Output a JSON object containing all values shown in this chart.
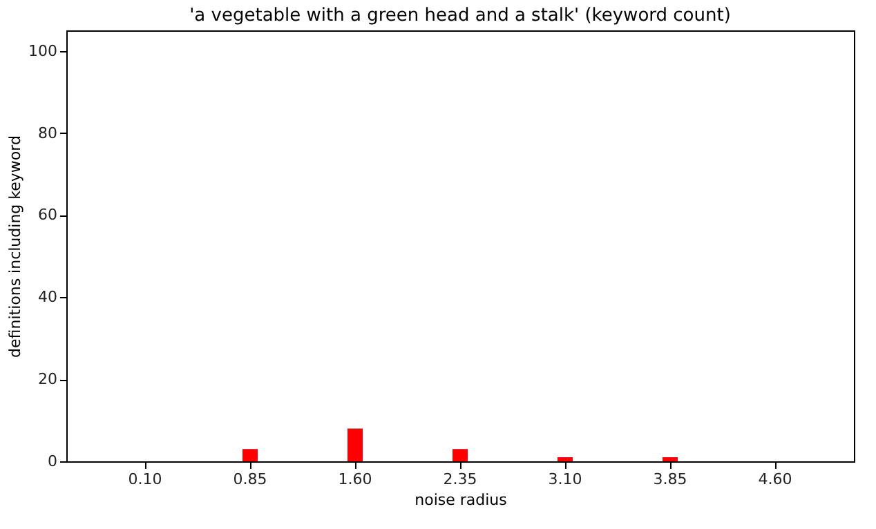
{
  "chart_data": {
    "type": "bar",
    "title": "'a vegetable with a green head and a stalk' (keyword count)",
    "xlabel": "noise radius",
    "ylabel": "definitions including keyword",
    "categories": [
      "0.10",
      "0.85",
      "1.60",
      "2.35",
      "3.10",
      "3.85",
      "4.60"
    ],
    "values": [
      0,
      3,
      8,
      3,
      1,
      1,
      0
    ],
    "color": "#ff0000",
    "ylim": [
      0,
      105
    ],
    "yticks": [
      0,
      20,
      40,
      60,
      80,
      100
    ],
    "grid": false
  }
}
